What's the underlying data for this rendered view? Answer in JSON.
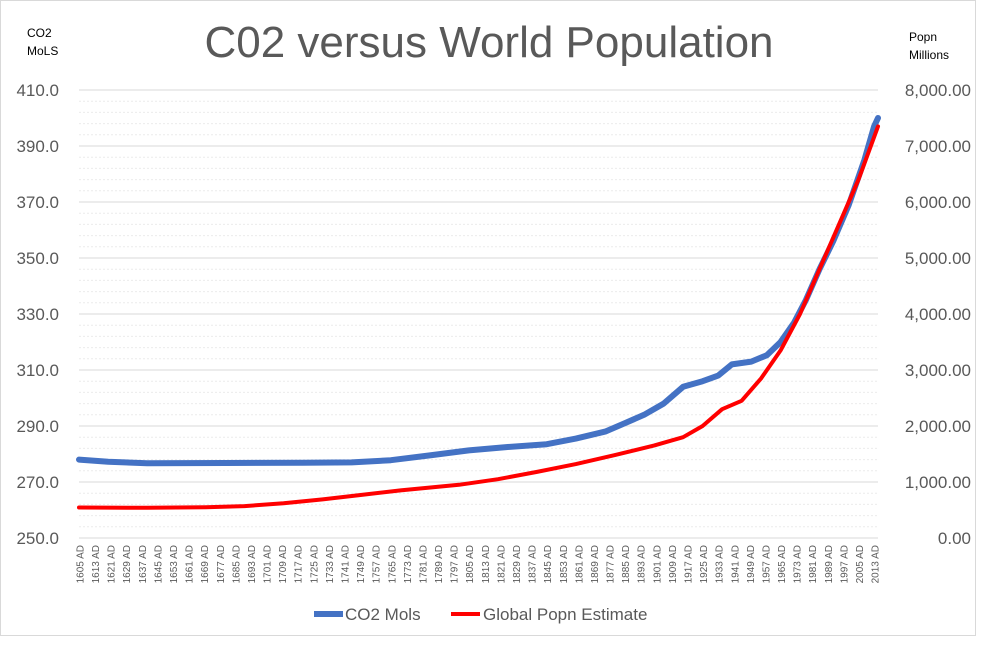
{
  "chart_data": {
    "type": "line",
    "title": "C02 versus World Population",
    "y_left_label_lines": [
      "CO2",
      "MoLS"
    ],
    "y_right_label_lines": [
      "Popn",
      "Millions"
    ],
    "y_left": {
      "min": 250,
      "max": 410,
      "ticks": [
        "410.0",
        "390.0",
        "370.0",
        "350.0",
        "330.0",
        "310.0",
        "290.0",
        "270.0",
        "250.0"
      ],
      "tick_values": [
        410,
        390,
        370,
        350,
        330,
        310,
        290,
        270,
        250
      ]
    },
    "y_right": {
      "min": 0,
      "max": 8000,
      "ticks": [
        "8,000.00",
        "7,000.00",
        "6,000.00",
        "5,000.00",
        "4,000.00",
        "3,000.00",
        "2,000.00",
        "1,000.00",
        "0.00"
      ],
      "tick_values": [
        8000,
        7000,
        6000,
        5000,
        4000,
        3000,
        2000,
        1000,
        0
      ]
    },
    "x_ticks": [
      "1605 AD",
      "1613 AD",
      "1621 AD",
      "1629 AD",
      "1637 AD",
      "1645 AD",
      "1653 AD",
      "1661 AD",
      "1669 AD",
      "1677 AD",
      "1685 AD",
      "1693 AD",
      "1701 AD",
      "1709 AD",
      "1717 AD",
      "1725 AD",
      "1733 AD",
      "1741 AD",
      "1749 AD",
      "1757 AD",
      "1765 AD",
      "1773 AD",
      "1781 AD",
      "1789 AD",
      "1797 AD",
      "1805 AD",
      "1813 AD",
      "1821 AD",
      "1829 AD",
      "1837 AD",
      "1845 AD",
      "1853 AD",
      "1861 AD",
      "1869 AD",
      "1877 AD",
      "1885 AD",
      "1893 AD",
      "1901 AD",
      "1909 AD",
      "1917 AD",
      "1925 AD",
      "1933 AD",
      "1941 AD",
      "1949 AD",
      "1957 AD",
      "1965 AD",
      "1973 AD",
      "1981 AD",
      "1989 AD",
      "1997 AD",
      "2005 AD",
      "2013 AD"
    ],
    "x_range": [
      1605,
      2015
    ],
    "grid": true,
    "legend_position": "bottom",
    "series": [
      {
        "name": "CO2 Mols",
        "axis": "left",
        "color": "#4472c4",
        "points": [
          [
            1605,
            278
          ],
          [
            1620,
            277.2
          ],
          [
            1640,
            276.7
          ],
          [
            1680,
            276.8
          ],
          [
            1720,
            276.9
          ],
          [
            1745,
            277
          ],
          [
            1765,
            277.8
          ],
          [
            1785,
            279.5
          ],
          [
            1805,
            281.3
          ],
          [
            1825,
            282.5
          ],
          [
            1845,
            283.5
          ],
          [
            1860,
            285.5
          ],
          [
            1875,
            288
          ],
          [
            1885,
            291
          ],
          [
            1895,
            294
          ],
          [
            1905,
            298
          ],
          [
            1915,
            304
          ],
          [
            1925,
            306
          ],
          [
            1933,
            308
          ],
          [
            1940,
            312
          ],
          [
            1950,
            313
          ],
          [
            1958,
            315.3
          ],
          [
            1965,
            320
          ],
          [
            1972,
            327
          ],
          [
            1978,
            335
          ],
          [
            1985,
            346
          ],
          [
            1992,
            356
          ],
          [
            2000,
            369
          ],
          [
            2008,
            385
          ],
          [
            2013,
            397
          ],
          [
            2015,
            400
          ]
        ]
      },
      {
        "name": "Global Popn Estimate",
        "axis": "right",
        "color": "#ff0000",
        "points": [
          [
            1605,
            545
          ],
          [
            1640,
            540
          ],
          [
            1670,
            550
          ],
          [
            1690,
            570
          ],
          [
            1710,
            620
          ],
          [
            1730,
            690
          ],
          [
            1750,
            770
          ],
          [
            1770,
            850
          ],
          [
            1800,
            950
          ],
          [
            1820,
            1050
          ],
          [
            1840,
            1180
          ],
          [
            1860,
            1320
          ],
          [
            1880,
            1480
          ],
          [
            1900,
            1650
          ],
          [
            1915,
            1800
          ],
          [
            1925,
            2000
          ],
          [
            1935,
            2300
          ],
          [
            1945,
            2450
          ],
          [
            1955,
            2850
          ],
          [
            1965,
            3350
          ],
          [
            1975,
            4000
          ],
          [
            1985,
            4800
          ],
          [
            1995,
            5600
          ],
          [
            2005,
            6400
          ],
          [
            2015,
            7350
          ]
        ]
      }
    ]
  }
}
